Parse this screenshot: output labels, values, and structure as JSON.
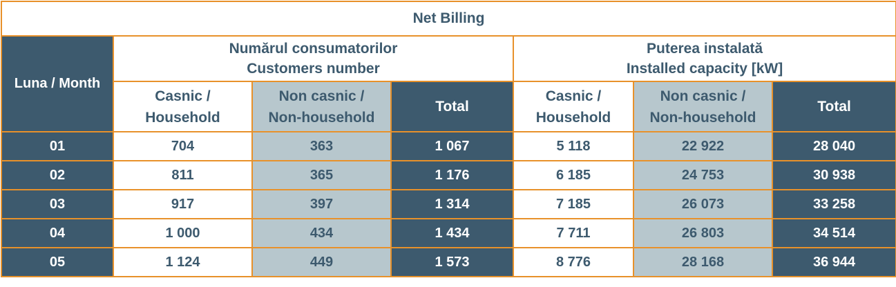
{
  "title": "Net Billing",
  "month_header": "Luna / Month",
  "groups": [
    {
      "line1": "Numărul consumatorilor",
      "line2": "Customers number"
    },
    {
      "line1": "Puterea instalată",
      "line2": "Installed capacity [kW]"
    }
  ],
  "subheaders": {
    "household": {
      "line1": "Casnic /",
      "line2": "Household"
    },
    "non_household": {
      "line1": "Non casnic /",
      "line2": "Non-household"
    },
    "total": "Total"
  },
  "rows": [
    {
      "month": "01",
      "cust_household": "704",
      "cust_non_household": "363",
      "cust_total": "1 067",
      "cap_household": "5 118",
      "cap_non_household": "22 922",
      "cap_total": "28 040"
    },
    {
      "month": "02",
      "cust_household": "811",
      "cust_non_household": "365",
      "cust_total": "1 176",
      "cap_household": "6 185",
      "cap_non_household": "24 753",
      "cap_total": "30 938"
    },
    {
      "month": "03",
      "cust_household": "917",
      "cust_non_household": "397",
      "cust_total": "1 314",
      "cap_household": "7 185",
      "cap_non_household": "26 073",
      "cap_total": "33 258"
    },
    {
      "month": "04",
      "cust_household": "1 000",
      "cust_non_household": "434",
      "cust_total": "1 434",
      "cap_household": "7 711",
      "cap_non_household": "26 803",
      "cap_total": "34 514"
    },
    {
      "month": "05",
      "cust_household": "1 124",
      "cust_non_household": "449",
      "cust_total": "1 573",
      "cap_household": "8 776",
      "cap_non_household": "28 168",
      "cap_total": "36 944"
    }
  ],
  "colors": {
    "dark": "#3d5a6e",
    "grey": "#b7c7cd",
    "border": "#e8912a",
    "white": "#ffffff"
  }
}
